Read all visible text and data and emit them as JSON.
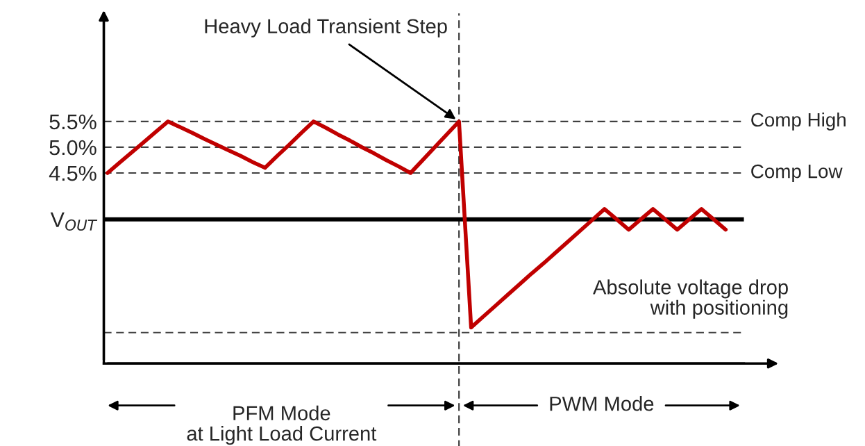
{
  "chart_data": {
    "type": "line",
    "categories": [
      null,
      null,
      null,
      null,
      null,
      null,
      null,
      null,
      null,
      null,
      null,
      null,
      null,
      null,
      null,
      null,
      null,
      null,
      null,
      null,
      null,
      null,
      null,
      null,
      null,
      null,
      null,
      null,
      null,
      null,
      null,
      null,
      null,
      null,
      null,
      null,
      null,
      null,
      null,
      null,
      null,
      null,
      null,
      null,
      null,
      null,
      null,
      null,
      null,
      null,
      null,
      null
    ],
    "series": [
      {
        "color": "#c00000",
        "values": [
          4.5,
          4.7,
          4.9,
          5.1,
          5.3,
          5.5,
          5.39,
          5.28,
          5.16,
          5.05,
          4.94,
          4.83,
          4.71,
          4.6,
          4.83,
          5.05,
          5.28,
          5.5,
          5.38,
          5.25,
          5.13,
          5.0,
          4.88,
          4.75,
          4.63,
          4.5,
          4.75,
          5.0,
          5.25,
          5.5,
          1.5,
          1.71,
          1.92,
          2.13,
          2.34,
          2.55,
          2.75,
          2.96,
          3.17,
          3.38,
          3.59,
          3.8,
          3.6,
          3.4,
          3.6,
          3.8,
          3.6,
          3.4,
          3.6,
          3.8,
          3.6,
          3.4
        ]
      }
    ],
    "ylim": [
      0.8,
      7.6
    ],
    "yticks": [
      {
        "value": 5.5,
        "label": "5.5%"
      },
      {
        "value": 5.0,
        "label": "5.0%"
      },
      {
        "value": 4.5,
        "label": "4.5%"
      },
      {
        "value": 3.6,
        "label": "V$_{OUT}$"
      }
    ],
    "tick_labels": "y",
    "grid": false,
    "marker": "none",
    "line_style": "solid",
    "ref_lines": [
      {
        "axis": "y",
        "value": 5.5,
        "label": "Comp High",
        "color": "#404040",
        "line_style": "dashed"
      },
      {
        "axis": "y",
        "value": 5.0,
        "label": null,
        "color": "#404040",
        "line_style": "dashed"
      },
      {
        "axis": "y",
        "value": 4.5,
        "label": "Comp Low",
        "color": "#404040",
        "line_style": "dashed"
      },
      {
        "axis": "y",
        "value": 3.6,
        "label": null,
        "color": "#000000",
        "line_style": "solid"
      },
      {
        "axis": "y",
        "value": 1.4,
        "label": null,
        "color": "#404040",
        "line_style": "dashed"
      }
    ],
    "annotations": [
      "Heavy Load Transient Step",
      "Absolute voltage drop\nwith positioning",
      "PFM Mode\nat Light Load Current",
      "PWM Mode"
    ]
  }
}
